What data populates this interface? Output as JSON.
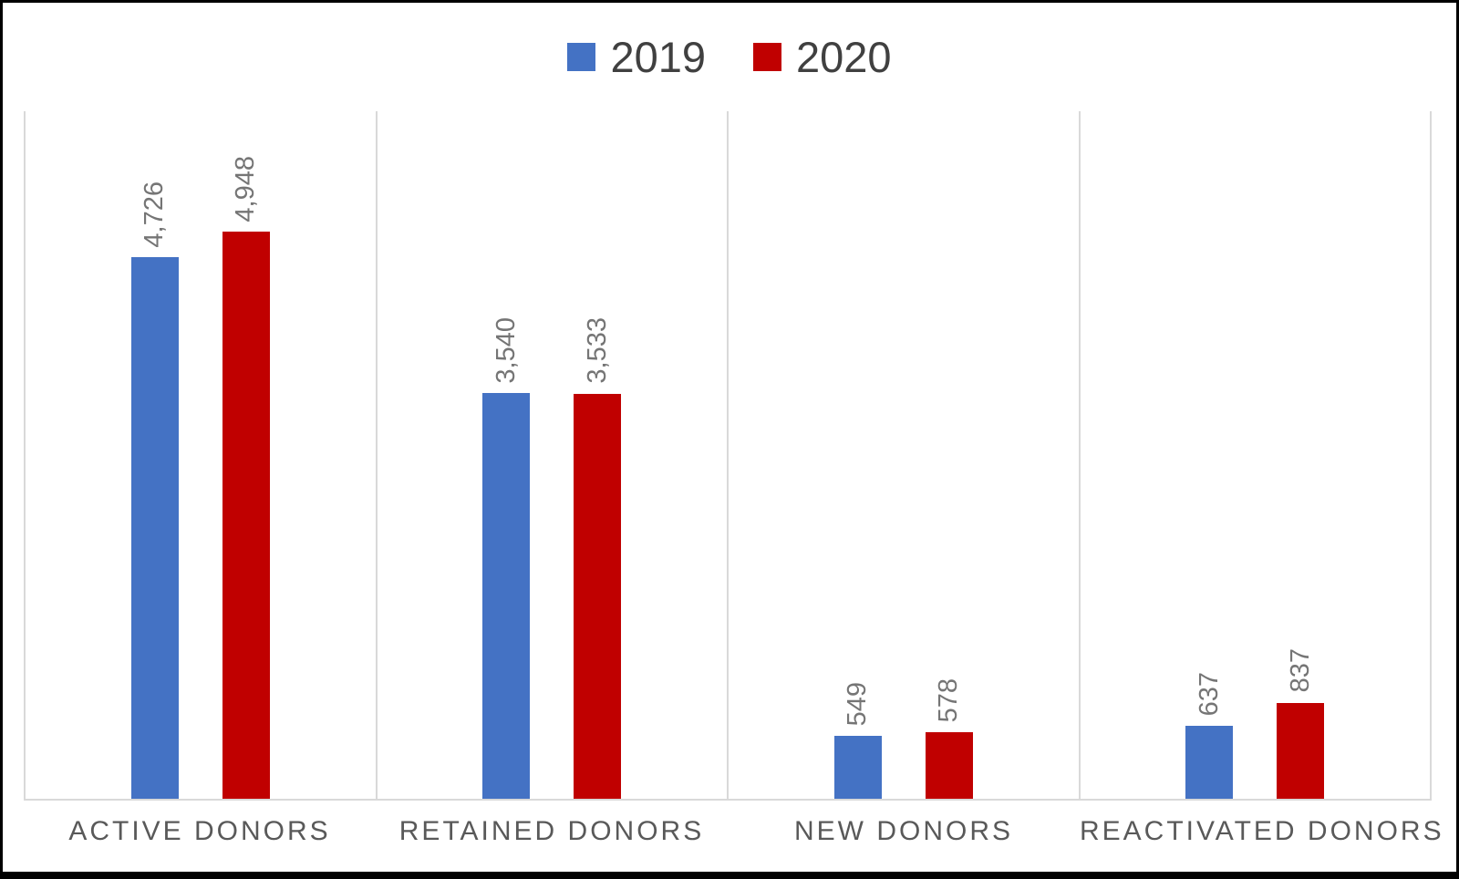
{
  "chart_data": {
    "type": "bar",
    "title": "",
    "categories": [
      "ACTIVE DONORS",
      "RETAINED DONORS",
      "NEW DONORS",
      "REACTIVATED DONORS"
    ],
    "series": [
      {
        "name": "2019",
        "color": "#4472C4",
        "values": [
          4726,
          3540,
          549,
          637
        ],
        "data_labels": [
          "4,726",
          "3,540",
          "549",
          "637"
        ]
      },
      {
        "name": "2020",
        "color": "#C00000",
        "values": [
          4948,
          3533,
          578,
          837
        ],
        "data_labels": [
          "4,948",
          "3,533",
          "578",
          "837"
        ]
      }
    ],
    "ylim": [
      0,
      6000
    ],
    "legend_position": "top center",
    "grid": "vertical separators between category panels, no horizontal gridlines, no value axis shown",
    "data_label_rotation_deg": 90
  },
  "colors": {
    "series_2019": "#4472C4",
    "series_2020": "#C00000",
    "data_label_text": "#757575",
    "category_label_text": "#595959",
    "legend_text": "#404040",
    "grid_line": "#D9D9D9",
    "frame_border": "#000000",
    "background": "#FFFFFF"
  }
}
